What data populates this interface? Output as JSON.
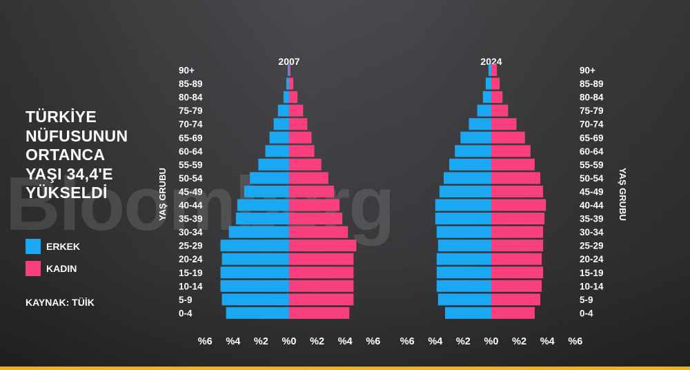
{
  "headline": [
    "TÜRKİYE",
    "NÜFUSUNUN",
    "ORTANCA",
    "YAŞI 34,4'E",
    "YÜKSELDİ"
  ],
  "legend": [
    {
      "label": "ERKEK",
      "color": "#1aa8f2"
    },
    {
      "label": "KADIN",
      "color": "#fa3f7e"
    }
  ],
  "source": "KAYNAK: TÜİK",
  "watermark": "Bloomberg",
  "chart_data": [
    {
      "type": "bar",
      "orientation": "horizontal",
      "layout": "population-pyramid",
      "title": "2007",
      "xlabel": "",
      "ylabel": "YAŞ GRUBU",
      "categories": [
        "90+",
        "85-89",
        "80-84",
        "75-79",
        "70-74",
        "65-69",
        "60-64",
        "55-59",
        "50-54",
        "45-49",
        "40-44",
        "35-39",
        "30-34",
        "25-29",
        "20-24",
        "15-19",
        "10-14",
        "5-9",
        "0-4"
      ],
      "series": [
        {
          "name": "ERKEK",
          "color": "#1aa8f2",
          "values": [
            0.1,
            0.2,
            0.4,
            0.8,
            1.1,
            1.4,
            1.7,
            2.2,
            2.8,
            3.2,
            3.7,
            3.8,
            4.3,
            4.9,
            4.8,
            4.9,
            4.9,
            4.8,
            4.5
          ]
        },
        {
          "name": "KADIN",
          "color": "#fa3f7e",
          "values": [
            0.1,
            0.3,
            0.6,
            1.0,
            1.3,
            1.6,
            1.8,
            2.3,
            2.8,
            3.2,
            3.6,
            3.8,
            4.2,
            4.8,
            4.6,
            4.6,
            4.6,
            4.6,
            4.3
          ]
        }
      ],
      "xticks": [
        "%6",
        "%4",
        "%2",
        "%0",
        "%2",
        "%4",
        "%6"
      ],
      "xlim": [
        -6,
        6
      ],
      "grid": false
    },
    {
      "type": "bar",
      "orientation": "horizontal",
      "layout": "population-pyramid",
      "title": "2024",
      "xlabel": "",
      "ylabel": "YAŞ GRUBU",
      "categories": [
        "90+",
        "85-89",
        "80-84",
        "75-79",
        "70-74",
        "65-69",
        "60-64",
        "55-59",
        "50-54",
        "45-49",
        "40-44",
        "35-39",
        "30-34",
        "25-29",
        "20-24",
        "15-19",
        "10-14",
        "5-9",
        "0-4"
      ],
      "series": [
        {
          "name": "ERKEK",
          "color": "#1aa8f2",
          "values": [
            0.2,
            0.4,
            0.6,
            1.0,
            1.6,
            2.2,
            2.6,
            3.0,
            3.4,
            3.7,
            4.0,
            4.0,
            3.9,
            3.8,
            3.9,
            3.9,
            3.9,
            3.8,
            3.3
          ]
        },
        {
          "name": "KADIN",
          "color": "#fa3f7e",
          "values": [
            0.4,
            0.6,
            0.8,
            1.2,
            1.8,
            2.4,
            2.8,
            3.1,
            3.5,
            3.7,
            3.9,
            3.8,
            3.7,
            3.7,
            3.6,
            3.7,
            3.6,
            3.5,
            3.1
          ]
        }
      ],
      "xticks": [
        "%6",
        "%4",
        "%2",
        "%0",
        "%2",
        "%4",
        "%6"
      ],
      "xlim": [
        -6,
        6
      ],
      "grid": false
    }
  ]
}
